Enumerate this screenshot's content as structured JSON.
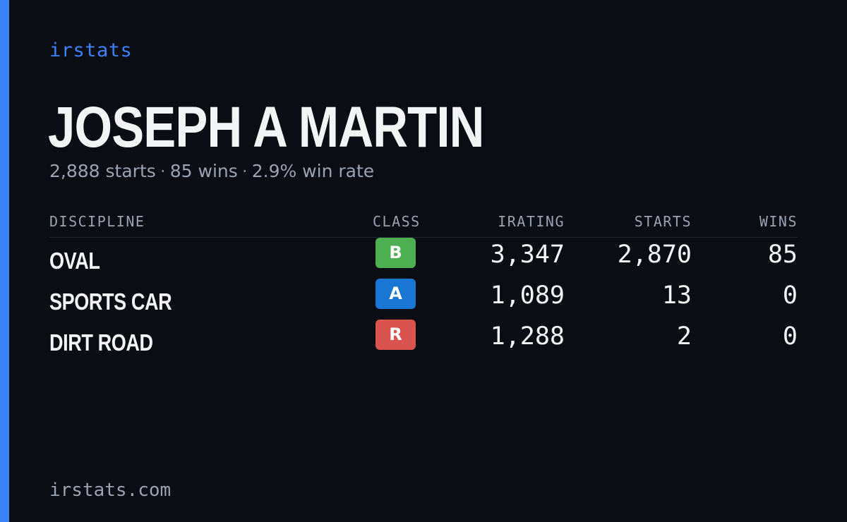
{
  "brand": "irstats",
  "player": {
    "name": "JOSEPH A MARTIN",
    "starts": "2,888 starts",
    "wins": "85 wins",
    "win_rate": "2.9% win rate",
    "separator": "·"
  },
  "table": {
    "headers": {
      "discipline": "DISCIPLINE",
      "class": "CLASS",
      "irating": "IRATING",
      "starts": "STARTS",
      "wins": "WINS"
    },
    "rows": [
      {
        "discipline": "OVAL",
        "class": "B",
        "class_color": "#4caf50",
        "irating": "3,347",
        "starts": "2,870",
        "wins": "85"
      },
      {
        "discipline": "SPORTS CAR",
        "class": "A",
        "class_color": "#1976d2",
        "irating": "1,089",
        "starts": "13",
        "wins": "0"
      },
      {
        "discipline": "DIRT ROAD",
        "class": "R",
        "class_color": "#d9534f",
        "irating": "1,288",
        "starts": "2",
        "wins": "0"
      }
    ]
  },
  "footer": "irstats.com",
  "colors": {
    "background": "#0a0d14",
    "accent": "#3b82f6"
  }
}
